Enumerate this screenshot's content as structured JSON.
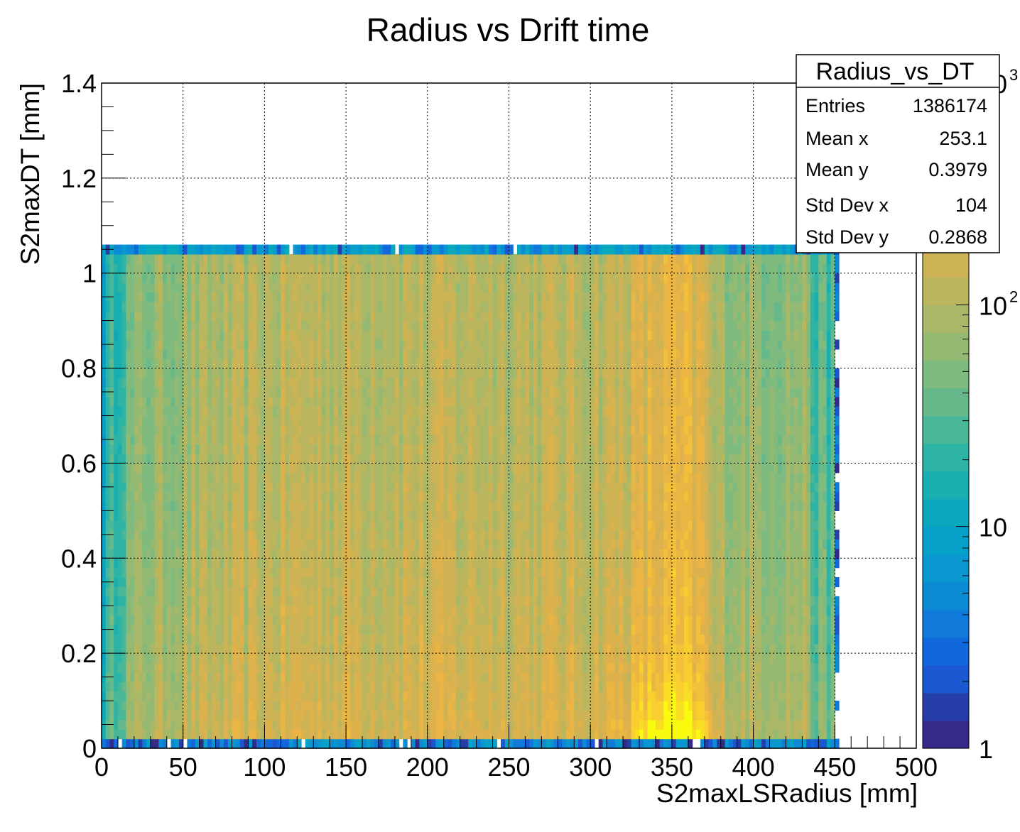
{
  "chart_data": {
    "type": "heatmap",
    "title": "Radius vs Drift time",
    "xlabel": "S2maxLSRadius [mm]",
    "ylabel": "S2maxDT [mm]",
    "xlim": [
      0,
      500
    ],
    "ylim": [
      0,
      1.4
    ],
    "x_ticks": [
      "0",
      "50",
      "100",
      "150",
      "200",
      "250",
      "300",
      "350",
      "400",
      "450",
      "500"
    ],
    "y_ticks": [
      "0",
      "0.2",
      "0.4",
      "0.6",
      "0.8",
      "1",
      "1.2",
      "1.4"
    ],
    "grid": true,
    "z_scale": "log",
    "z_range": [
      1,
      1000
    ],
    "z_ticks": [
      {
        "value": 1,
        "base": "1",
        "exp": ""
      },
      {
        "value": 10,
        "base": "10",
        "exp": ""
      },
      {
        "value": 100,
        "base": "10",
        "exp": "2"
      },
      {
        "value": 1000,
        "base": "10",
        "exp": "3"
      }
    ],
    "palette": [
      "#352a87",
      "#263fa8",
      "#1a57d0",
      "#1168dd",
      "#0f7ada",
      "#0d8ad4",
      "#0897cf",
      "#06a0c8",
      "#0aa8bd",
      "#19afb0",
      "#2eb4a4",
      "#4ab898",
      "#67b98b",
      "#7fba7f",
      "#94b973",
      "#a8b868",
      "#bbb65e",
      "#cdb354",
      "#ddb14c",
      "#ebb544",
      "#f3c03a",
      "#f8cf2e",
      "#fade24",
      "#f9fb0e"
    ],
    "heatmap_model": {
      "description": "approximate bin counts read from the colour scale",
      "x_bins": 200,
      "y_bins": 70,
      "x_bin_width_mm": 2.5,
      "y_bin_width_mm": 0.02,
      "populated_x_range": [
        0,
        452.5
      ],
      "populated_y_range": [
        0,
        1.06
      ],
      "peak_region": {
        "x": 350,
        "y": 0.02,
        "count": 1000
      },
      "typical_mid_count": 200,
      "edge_counts": {
        "x_0": 12,
        "x_450": 40,
        "y_top_row": 3,
        "y_bottom_row": 2
      }
    },
    "stats_box": {
      "name": "Radius_vs_DT",
      "rows": [
        {
          "label": "Entries",
          "value": "1386174"
        },
        {
          "label": "Mean x",
          "value": "253.1"
        },
        {
          "label": "Mean y",
          "value": "0.3979"
        },
        {
          "label": "Std Dev x",
          "value": "104"
        },
        {
          "label": "Std Dev y",
          "value": "0.2868"
        }
      ]
    }
  }
}
